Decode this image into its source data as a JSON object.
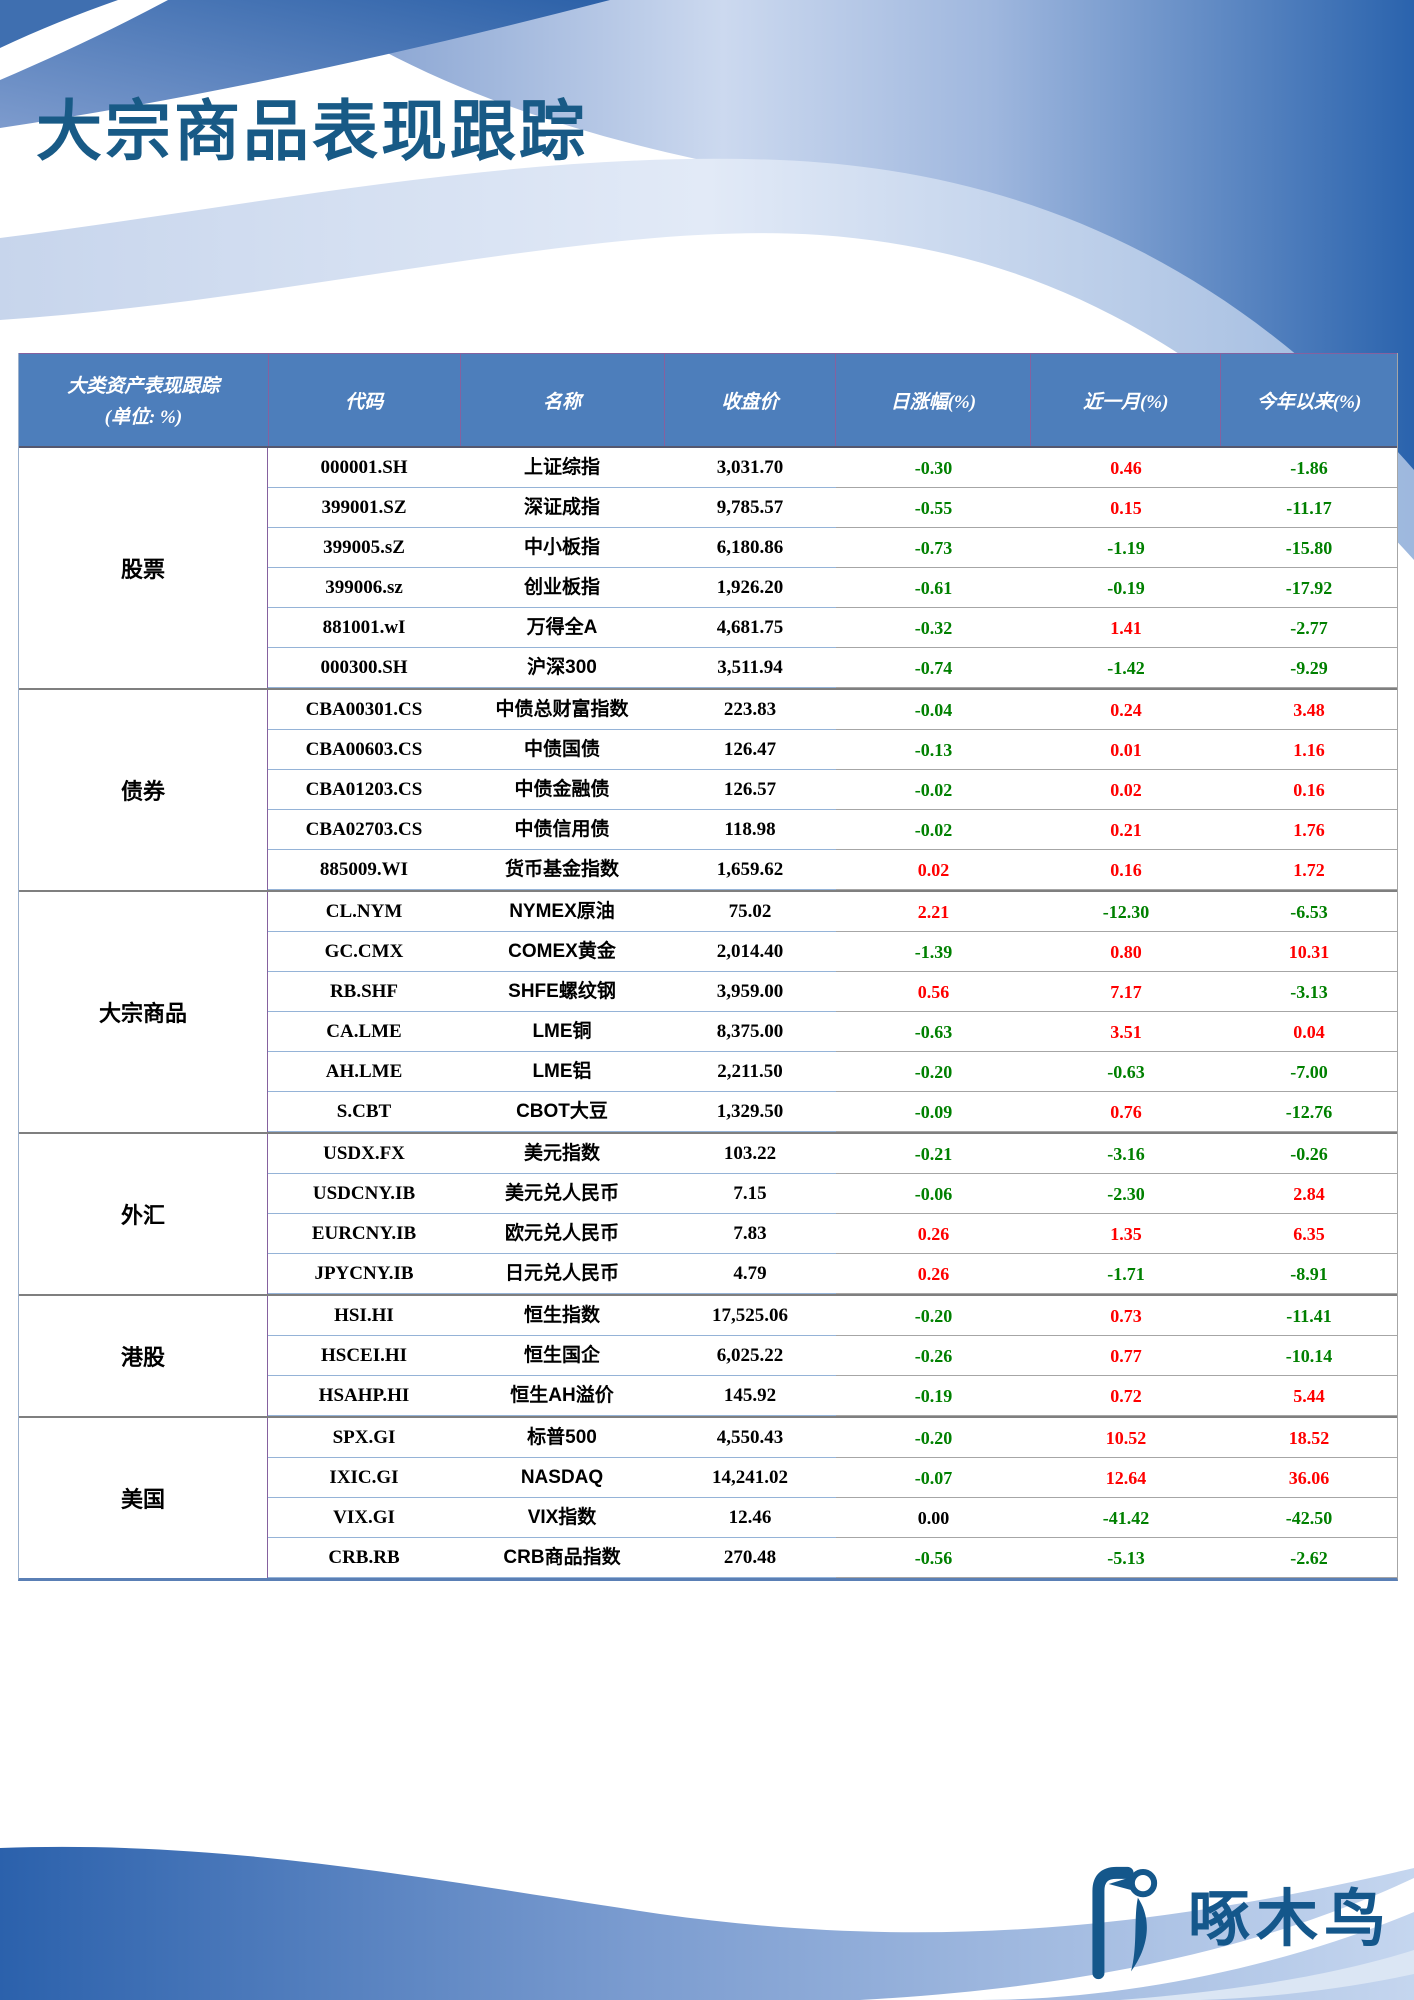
{
  "title": "大宗商品表现跟踪",
  "logo": {
    "name": "啄木鸟"
  },
  "colors": {
    "header_bg": "#4d7ebb",
    "header_text": "#ffffff",
    "positive": "#ff0000",
    "negative": "#008000",
    "zero": "#000000",
    "title": "#185a86",
    "row_line_left": "#95b3d7",
    "row_line_right": "#a6a6a6",
    "column_divider": "#85619f",
    "banner_dark_blue": "#2a63ad",
    "banner_light_blue": "#c9d7ee",
    "logo_blue": "#14578b"
  },
  "table": {
    "corner_header_line1": "大类资产表现跟踪",
    "corner_header_line2": "(单位: %)",
    "columns": [
      "代码",
      "名称",
      "收盘价",
      "日涨幅(%)",
      "近一月(%)",
      "今年以来(%)"
    ],
    "groups": [
      {
        "category": "股票",
        "rows": [
          {
            "code": "000001.SH",
            "name": "上证综指",
            "close": "3,031.70",
            "d1": "-0.30",
            "m1": "0.46",
            "ytd": "-1.86"
          },
          {
            "code": "399001.SZ",
            "name": "深证成指",
            "close": "9,785.57",
            "d1": "-0.55",
            "m1": "0.15",
            "ytd": "-11.17"
          },
          {
            "code": "399005.sZ",
            "name": "中小板指",
            "close": "6,180.86",
            "d1": "-0.73",
            "m1": "-1.19",
            "ytd": "-15.80"
          },
          {
            "code": "399006.sz",
            "name": "创业板指",
            "close": "1,926.20",
            "d1": "-0.61",
            "m1": "-0.19",
            "ytd": "-17.92"
          },
          {
            "code": "881001.wI",
            "name": "万得全A",
            "close": "4,681.75",
            "d1": "-0.32",
            "m1": "1.41",
            "ytd": "-2.77"
          },
          {
            "code": "000300.SH",
            "name": "沪深300",
            "close": "3,511.94",
            "d1": "-0.74",
            "m1": "-1.42",
            "ytd": "-9.29"
          }
        ]
      },
      {
        "category": "债券",
        "rows": [
          {
            "code": "CBA00301.CS",
            "name": "中债总财富指数",
            "close": "223.83",
            "d1": "-0.04",
            "m1": "0.24",
            "ytd": "3.48"
          },
          {
            "code": "CBA00603.CS",
            "name": "中债国债",
            "close": "126.47",
            "d1": "-0.13",
            "m1": "0.01",
            "ytd": "1.16"
          },
          {
            "code": "CBA01203.CS",
            "name": "中债金融债",
            "close": "126.57",
            "d1": "-0.02",
            "m1": "0.02",
            "ytd": "0.16"
          },
          {
            "code": "CBA02703.CS",
            "name": "中债信用债",
            "close": "118.98",
            "d1": "-0.02",
            "m1": "0.21",
            "ytd": "1.76"
          },
          {
            "code": "885009.WI",
            "name": "货币基金指数",
            "close": "1,659.62",
            "d1": "0.02",
            "m1": "0.16",
            "ytd": "1.72"
          }
        ]
      },
      {
        "category": "大宗商品",
        "rows": [
          {
            "code": "CL.NYM",
            "name": "NYMEX原油",
            "close": "75.02",
            "d1": "2.21",
            "m1": "-12.30",
            "ytd": "-6.53"
          },
          {
            "code": "GC.CMX",
            "name": "COMEX黄金",
            "close": "2,014.40",
            "d1": "-1.39",
            "m1": "0.80",
            "ytd": "10.31"
          },
          {
            "code": "RB.SHF",
            "name": "SHFE螺纹钢",
            "close": "3,959.00",
            "d1": "0.56",
            "m1": "7.17",
            "ytd": "-3.13"
          },
          {
            "code": "CA.LME",
            "name": "LME铜",
            "close": "8,375.00",
            "d1": "-0.63",
            "m1": "3.51",
            "ytd": "0.04"
          },
          {
            "code": "AH.LME",
            "name": "LME铝",
            "close": "2,211.50",
            "d1": "-0.20",
            "m1": "-0.63",
            "ytd": "-7.00"
          },
          {
            "code": "S.CBT",
            "name": "CBOT大豆",
            "close": "1,329.50",
            "d1": "-0.09",
            "m1": "0.76",
            "ytd": "-12.76"
          }
        ]
      },
      {
        "category": "外汇",
        "rows": [
          {
            "code": "USDX.FX",
            "name": "美元指数",
            "close": "103.22",
            "d1": "-0.21",
            "m1": "-3.16",
            "ytd": "-0.26"
          },
          {
            "code": "USDCNY.IB",
            "name": "美元兑人民币",
            "close": "7.15",
            "d1": "-0.06",
            "m1": "-2.30",
            "ytd": "2.84"
          },
          {
            "code": "EURCNY.IB",
            "name": "欧元兑人民币",
            "close": "7.83",
            "d1": "0.26",
            "m1": "1.35",
            "ytd": "6.35"
          },
          {
            "code": "JPYCNY.IB",
            "name": "日元兑人民币",
            "close": "4.79",
            "d1": "0.26",
            "m1": "-1.71",
            "ytd": "-8.91"
          }
        ]
      },
      {
        "category": "港股",
        "rows": [
          {
            "code": "HSI.HI",
            "name": "恒生指数",
            "close": "17,525.06",
            "d1": "-0.20",
            "m1": "0.73",
            "ytd": "-11.41"
          },
          {
            "code": "HSCEI.HI",
            "name": "恒生国企",
            "close": "6,025.22",
            "d1": "-0.26",
            "m1": "0.77",
            "ytd": "-10.14"
          },
          {
            "code": "HSAHP.HI",
            "name": "恒生AH溢价",
            "close": "145.92",
            "d1": "-0.19",
            "m1": "0.72",
            "ytd": "5.44"
          }
        ]
      },
      {
        "category": "美国",
        "rows": [
          {
            "code": "SPX.GI",
            "name": "标普500",
            "close": "4,550.43",
            "d1": "-0.20",
            "m1": "10.52",
            "ytd": "18.52"
          },
          {
            "code": "IXIC.GI",
            "name": "NASDAQ",
            "close": "14,241.02",
            "d1": "-0.07",
            "m1": "12.64",
            "ytd": "36.06"
          },
          {
            "code": "VIX.GI",
            "name": "VIX指数",
            "close": "12.46",
            "d1": "0.00",
            "m1": "-41.42",
            "ytd": "-42.50"
          },
          {
            "code": "CRB.RB",
            "name": "CRB商品指数",
            "close": "270.48",
            "d1": "-0.56",
            "m1": "-5.13",
            "ytd": "-2.62"
          }
        ]
      }
    ]
  }
}
